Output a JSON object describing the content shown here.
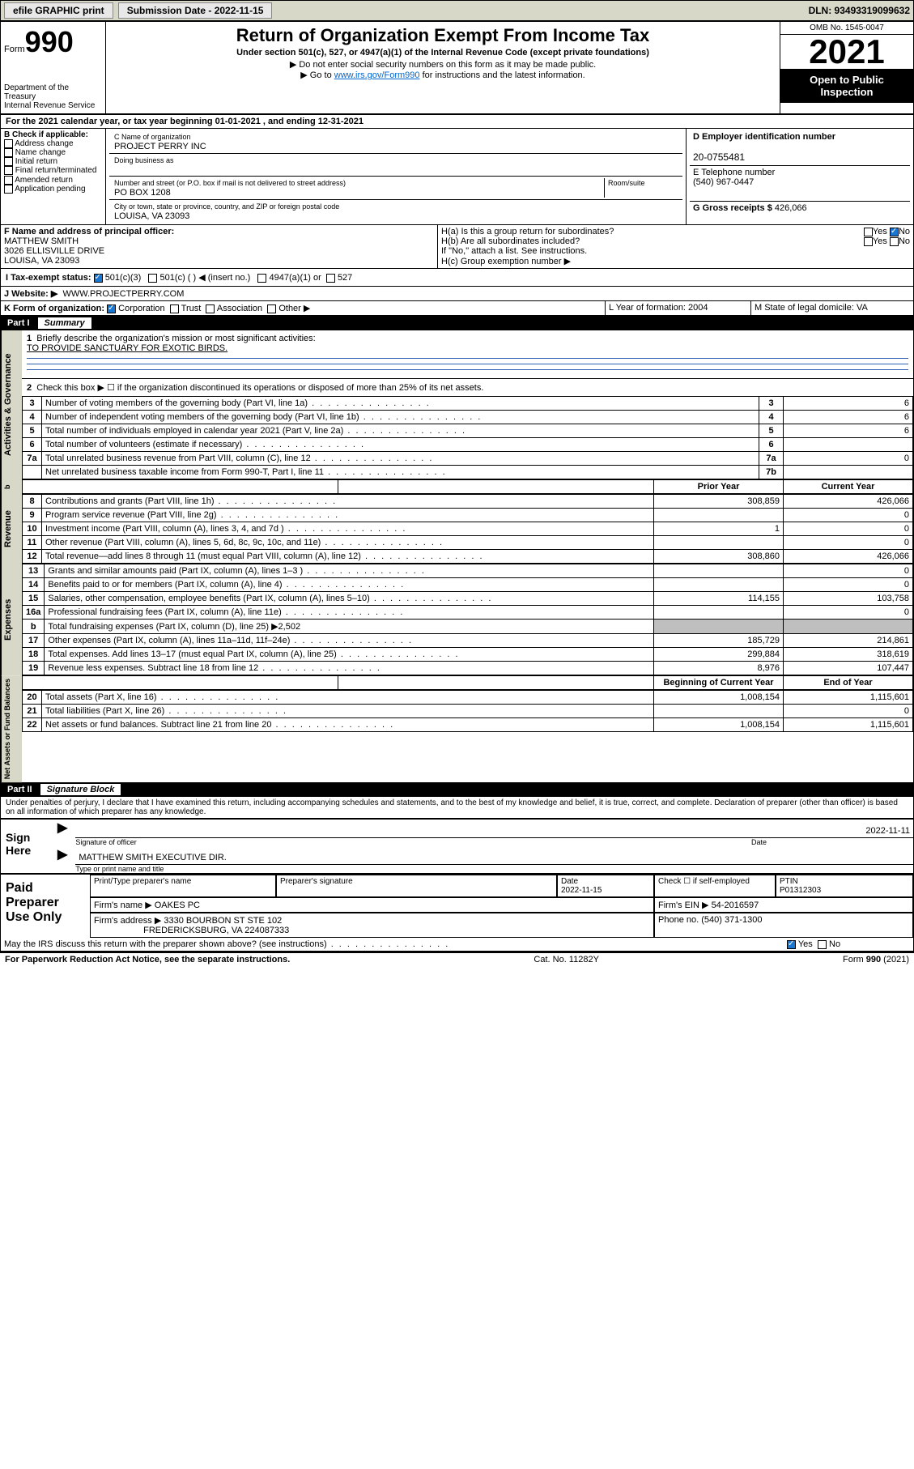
{
  "topbar": {
    "efile": "efile GRAPHIC print",
    "subdate_lbl": "Submission Date - 2022-11-15",
    "dln": "DLN: 93493319099632"
  },
  "header": {
    "form_word": "Form",
    "form_num": "990",
    "dept": "Department of the Treasury",
    "irs": "Internal Revenue Service",
    "title": "Return of Organization Exempt From Income Tax",
    "sub1": "Under section 501(c), 527, or 4947(a)(1) of the Internal Revenue Code (except private foundations)",
    "sub2": "▶ Do not enter social security numbers on this form as it may be made public.",
    "sub3_pre": "▶ Go to ",
    "sub3_link": "www.irs.gov/Form990",
    "sub3_post": " for instructions and the latest information.",
    "omb": "OMB No. 1545-0047",
    "year": "2021",
    "otp": "Open to Public Inspection"
  },
  "line_a": "For the 2021 calendar year, or tax year beginning 01-01-2021   , and ending 12-31-2021",
  "sec_b": {
    "hdr": "B Check if applicable:",
    "items": [
      "Address change",
      "Name change",
      "Initial return",
      "Final return/terminated",
      "Amended return",
      "Application pending"
    ]
  },
  "sec_c": {
    "lbl": "C Name of organization",
    "name": "PROJECT PERRY INC",
    "dba_lbl": "Doing business as",
    "addr_lbl": "Number and street (or P.O. box if mail is not delivered to street address)",
    "room_lbl": "Room/suite",
    "addr": "PO BOX 1208",
    "city_lbl": "City or town, state or province, country, and ZIP or foreign postal code",
    "city": "LOUISA, VA  23093"
  },
  "sec_d": {
    "lbl": "D Employer identification number",
    "val": "20-0755481"
  },
  "sec_e": {
    "lbl": "E Telephone number",
    "val": "(540) 967-0447"
  },
  "sec_g": {
    "lbl": "G Gross receipts $",
    "val": "426,066"
  },
  "sec_f": {
    "lbl": "F  Name and address of principal officer:",
    "name": "MATTHEW SMITH",
    "addr1": "3026 ELLISVILLE DRIVE",
    "addr2": "LOUISA, VA  23093"
  },
  "sec_h": {
    "ha": "H(a)  Is this a group return for subordinates?",
    "hb": "H(b)  Are all subordinates included?",
    "hb_note": "If \"No,\" attach a list. See instructions.",
    "hc": "H(c)  Group exemption number ▶",
    "yes": "Yes",
    "no": "No"
  },
  "line_i": {
    "lbl": "I    Tax-exempt status:",
    "opts": [
      "501(c)(3)",
      "501(c) (  ) ◀ (insert no.)",
      "4947(a)(1) or",
      "527"
    ]
  },
  "line_j": {
    "lbl": "J   Website: ▶",
    "val": "WWW.PROJECTPERRY.COM"
  },
  "line_k": {
    "lbl": "K Form of organization:",
    "opts": [
      "Corporation",
      "Trust",
      "Association",
      "Other ▶"
    ]
  },
  "line_l": {
    "lbl": "L Year of formation: 2004"
  },
  "line_m": {
    "lbl": "M State of legal domicile: VA"
  },
  "part1": {
    "num": "Part I",
    "title": "Summary"
  },
  "summary": {
    "q1": "Briefly describe the organization's mission or most significant activities:",
    "q1a": "TO PROVIDE SANCTUARY FOR EXOTIC BIRDS.",
    "q2": "Check this box ▶ ☐  if the organization discontinued its operations or disposed of more than 25% of its net assets.",
    "rows_top": [
      {
        "n": "3",
        "t": "Number of voting members of the governing body (Part VI, line 1a)",
        "b": "3",
        "v": "6"
      },
      {
        "n": "4",
        "t": "Number of independent voting members of the governing body (Part VI, line 1b)",
        "b": "4",
        "v": "6"
      },
      {
        "n": "5",
        "t": "Total number of individuals employed in calendar year 2021 (Part V, line 2a)",
        "b": "5",
        "v": "6"
      },
      {
        "n": "6",
        "t": "Total number of volunteers (estimate if necessary)",
        "b": "6",
        "v": ""
      },
      {
        "n": "7a",
        "t": "Total unrelated business revenue from Part VIII, column (C), line 12",
        "b": "7a",
        "v": "0"
      },
      {
        "n": "",
        "t": "Net unrelated business taxable income from Form 990-T, Part I, line 11",
        "b": "7b",
        "v": ""
      }
    ],
    "col_prior": "Prior Year",
    "col_curr": "Current Year",
    "rev": [
      {
        "n": "8",
        "t": "Contributions and grants (Part VIII, line 1h)",
        "p": "308,859",
        "c": "426,066"
      },
      {
        "n": "9",
        "t": "Program service revenue (Part VIII, line 2g)",
        "p": "",
        "c": "0"
      },
      {
        "n": "10",
        "t": "Investment income (Part VIII, column (A), lines 3, 4, and 7d )",
        "p": "1",
        "c": "0"
      },
      {
        "n": "11",
        "t": "Other revenue (Part VIII, column (A), lines 5, 6d, 8c, 9c, 10c, and 11e)",
        "p": "",
        "c": "0"
      },
      {
        "n": "12",
        "t": "Total revenue—add lines 8 through 11 (must equal Part VIII, column (A), line 12)",
        "p": "308,860",
        "c": "426,066"
      }
    ],
    "exp": [
      {
        "n": "13",
        "t": "Grants and similar amounts paid (Part IX, column (A), lines 1–3 )",
        "p": "",
        "c": "0"
      },
      {
        "n": "14",
        "t": "Benefits paid to or for members (Part IX, column (A), line 4)",
        "p": "",
        "c": "0"
      },
      {
        "n": "15",
        "t": "Salaries, other compensation, employee benefits (Part IX, column (A), lines 5–10)",
        "p": "114,155",
        "c": "103,758"
      },
      {
        "n": "16a",
        "t": "Professional fundraising fees (Part IX, column (A), line 11e)",
        "p": "",
        "c": "0"
      },
      {
        "n": "b",
        "t": "Total fundraising expenses (Part IX, column (D), line 25) ▶2,502",
        "gray": true
      },
      {
        "n": "17",
        "t": "Other expenses (Part IX, column (A), lines 11a–11d, 11f–24e)",
        "p": "185,729",
        "c": "214,861"
      },
      {
        "n": "18",
        "t": "Total expenses. Add lines 13–17 (must equal Part IX, column (A), line 25)",
        "p": "299,884",
        "c": "318,619"
      },
      {
        "n": "19",
        "t": "Revenue less expenses. Subtract line 18 from line 12",
        "p": "8,976",
        "c": "107,447"
      }
    ],
    "col_beg": "Beginning of Current Year",
    "col_end": "End of Year",
    "net": [
      {
        "n": "20",
        "t": "Total assets (Part X, line 16)",
        "p": "1,008,154",
        "c": "1,115,601"
      },
      {
        "n": "21",
        "t": "Total liabilities (Part X, line 26)",
        "p": "",
        "c": "0"
      },
      {
        "n": "22",
        "t": "Net assets or fund balances. Subtract line 21 from line 20",
        "p": "1,008,154",
        "c": "1,115,601"
      }
    ]
  },
  "part2": {
    "num": "Part II",
    "title": "Signature Block"
  },
  "sig": {
    "decl": "Under penalties of perjury, I declare that I have examined this return, including accompanying schedules and statements, and to the best of my knowledge and belief, it is true, correct, and complete. Declaration of preparer (other than officer) is based on all information of which preparer has any knowledge.",
    "sign_here": "Sign Here",
    "date": "2022-11-11",
    "officer_lbl": "Signature of officer",
    "date_lbl": "Date",
    "name": "MATTHEW SMITH  EXECUTIVE DIR.",
    "name_lbl": "Type or print name and title"
  },
  "paid": {
    "hdr": "Paid Preparer Use Only",
    "c1": "Print/Type preparer's name",
    "c2": "Preparer's signature",
    "c3": "Date",
    "c3v": "2022-11-15",
    "c4": "Check ☐ if self-employed",
    "c5": "PTIN",
    "c5v": "P01312303",
    "firm_lbl": "Firm's name   ▶",
    "firm": "OAKES PC",
    "ein_lbl": "Firm's EIN ▶",
    "ein": "54-2016597",
    "addr_lbl": "Firm's address ▶",
    "addr1": "3330 BOURBON ST STE 102",
    "addr2": "FREDERICKSBURG, VA  224087333",
    "ph_lbl": "Phone no.",
    "ph": "(540) 371-1300"
  },
  "footer": {
    "q": "May the IRS discuss this return with the preparer shown above? (see instructions)",
    "yes": "Yes",
    "no": "No",
    "pra": "For Paperwork Reduction Act Notice, see the separate instructions.",
    "cat": "Cat. No. 11282Y",
    "form": "Form 990 (2021)"
  },
  "vtabs": {
    "gov": "Activities & Governance",
    "rev": "Revenue",
    "exp": "Expenses",
    "net": "Net Assets or Fund Balances"
  }
}
